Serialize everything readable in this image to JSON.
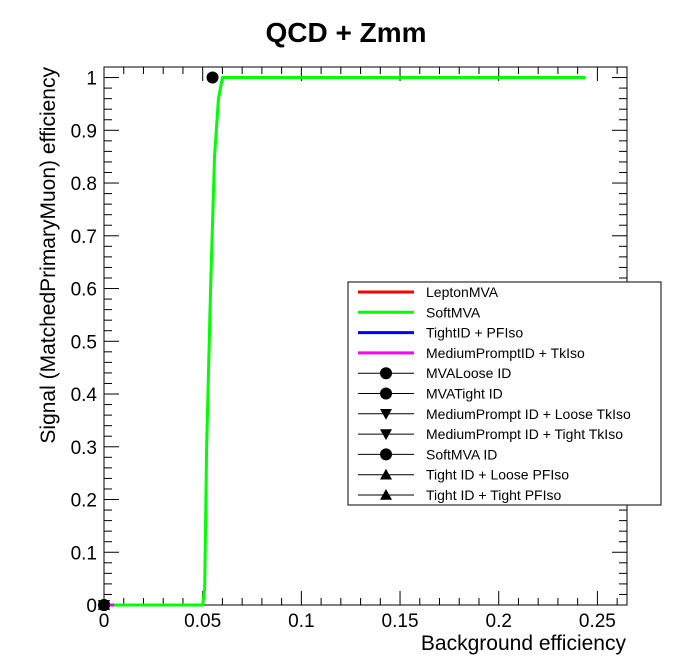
{
  "chart_data": {
    "type": "line",
    "title": "QCD + Zmm",
    "xlabel": "Background efficiency",
    "ylabel": "Signal (MatchedPrimaryMuon) efficiency",
    "xlim": [
      0,
      0.265
    ],
    "ylim": [
      0,
      1.02
    ],
    "grid": false,
    "legend_position": "right",
    "x_ticks": [
      {
        "value": 0,
        "label": "0"
      },
      {
        "value": 0.05,
        "label": "0.05"
      },
      {
        "value": 0.1,
        "label": "0.1"
      },
      {
        "value": 0.15,
        "label": "0.15"
      },
      {
        "value": 0.2,
        "label": "0.2"
      },
      {
        "value": 0.25,
        "label": "0.25"
      }
    ],
    "y_ticks": [
      {
        "value": 0,
        "label": "0"
      },
      {
        "value": 0.1,
        "label": "0.1"
      },
      {
        "value": 0.2,
        "label": "0.2"
      },
      {
        "value": 0.3,
        "label": "0.3"
      },
      {
        "value": 0.4,
        "label": "0.4"
      },
      {
        "value": 0.5,
        "label": "0.5"
      },
      {
        "value": 0.6,
        "label": "0.6"
      },
      {
        "value": 0.7,
        "label": "0.7"
      },
      {
        "value": 0.8,
        "label": "0.8"
      },
      {
        "value": 0.9,
        "label": "0.9"
      },
      {
        "value": 1,
        "label": "1"
      }
    ],
    "series": [
      {
        "name": "LeptonMVA",
        "kind": "line",
        "color": "#ff0000",
        "points": [
          [
            0,
            0
          ],
          [
            0.03,
            0
          ]
        ]
      },
      {
        "name": "SoftMVA",
        "kind": "line",
        "color": "#00ff00",
        "points": [
          [
            0,
            0
          ],
          [
            0.03,
            0
          ],
          [
            0.05,
            0
          ],
          [
            0.051,
            0.03
          ],
          [
            0.052,
            0.3
          ],
          [
            0.054,
            0.6
          ],
          [
            0.056,
            0.85
          ],
          [
            0.058,
            0.96
          ],
          [
            0.06,
            1.0
          ],
          [
            0.07,
            1.0
          ],
          [
            0.1,
            1.0
          ],
          [
            0.15,
            1.0
          ],
          [
            0.2,
            1.0
          ],
          [
            0.244,
            1.0
          ]
        ]
      },
      {
        "name": "TightID + PFIso",
        "kind": "line",
        "color": "#0000ff",
        "points": [
          [
            0,
            0
          ],
          [
            0.005,
            0
          ]
        ]
      },
      {
        "name": "MediumPromptID + TkIso",
        "kind": "line",
        "color": "#ff00ff",
        "points": [
          [
            0,
            0
          ],
          [
            0.005,
            0
          ]
        ]
      },
      {
        "name": "MVALoose ID",
        "kind": "marker",
        "marker": "circle",
        "color": "#000000",
        "points": [
          [
            0,
            0
          ]
        ]
      },
      {
        "name": "MVATight ID",
        "kind": "marker",
        "marker": "circle",
        "color": "#000000",
        "points": [
          [
            0,
            0
          ]
        ]
      },
      {
        "name": "MediumPrompt ID + Loose TkIso",
        "kind": "marker",
        "marker": "triangle-down",
        "color": "#000000",
        "points": [
          [
            0,
            0
          ]
        ]
      },
      {
        "name": "MediumPrompt ID + Tight TkIso",
        "kind": "marker",
        "marker": "triangle-down",
        "color": "#000000",
        "points": [
          [
            0,
            0
          ]
        ]
      },
      {
        "name": "SoftMVA ID",
        "kind": "marker",
        "marker": "circle",
        "color": "#000000",
        "points": [
          [
            0.055,
            1.0
          ]
        ]
      },
      {
        "name": "Tight ID + Loose PFIso",
        "kind": "marker",
        "marker": "triangle-up",
        "color": "#000000",
        "points": [
          [
            0,
            0
          ]
        ]
      },
      {
        "name": "Tight ID + Tight PFIso",
        "kind": "marker",
        "marker": "triangle-up",
        "color": "#000000",
        "points": [
          [
            0,
            0
          ]
        ]
      }
    ]
  }
}
